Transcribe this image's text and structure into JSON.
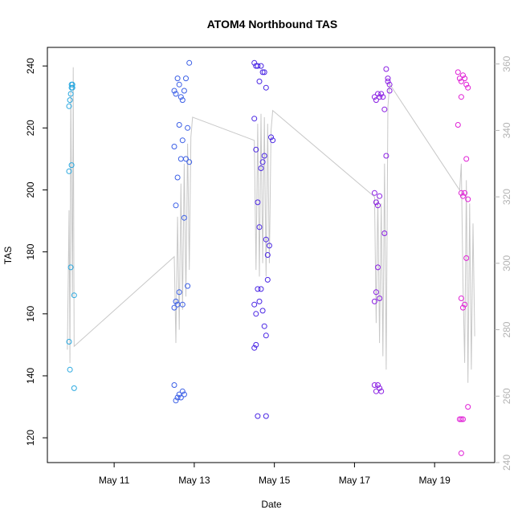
{
  "chart_data": {
    "type": "scatter",
    "title": "ATOM4 Northbound TAS",
    "xlabel": "Date",
    "ylabel": "TAS",
    "x_axis": {
      "type": "date",
      "range": [
        "2024-05-09T08:00",
        "2024-05-20T12:00"
      ],
      "ticks": [
        {
          "label": "May 11",
          "date": "2024-05-11"
        },
        {
          "label": "May 13",
          "date": "2024-05-13"
        },
        {
          "label": "May 15",
          "date": "2024-05-15"
        },
        {
          "label": "May 17",
          "date": "2024-05-17"
        },
        {
          "label": "May 19",
          "date": "2024-05-19"
        }
      ]
    },
    "y_left": {
      "range": [
        112,
        246
      ],
      "ticks": [
        120,
        140,
        160,
        180,
        200,
        220,
        240
      ]
    },
    "y_right": {
      "range": [
        240,
        365
      ],
      "ticks": [
        240,
        260,
        280,
        300,
        320,
        340,
        360
      ],
      "color": "#b3b3b3"
    },
    "grid": false,
    "legend": "none",
    "line_series": {
      "color": "#c8c8c8",
      "axis": "right",
      "points": [
        [
          "2024-05-09T20:00",
          274
        ],
        [
          "2024-05-09T21:00",
          316
        ],
        [
          "2024-05-09T21:30",
          270
        ],
        [
          "2024-05-09T22:00",
          352
        ],
        [
          "2024-05-09T23:00",
          290
        ],
        [
          "2024-05-09T23:30",
          359
        ],
        [
          "2024-05-10T00:00",
          275
        ],
        [
          "2024-05-12T12:00",
          302
        ],
        [
          "2024-05-12T13:00",
          276
        ],
        [
          "2024-05-12T14:00",
          314
        ],
        [
          "2024-05-12T15:00",
          280
        ],
        [
          "2024-05-12T16:00",
          324
        ],
        [
          "2024-05-12T17:00",
          286
        ],
        [
          "2024-05-12T18:00",
          330
        ],
        [
          "2024-05-12T19:00",
          290
        ],
        [
          "2024-05-12T20:00",
          336
        ],
        [
          "2024-05-12T21:00",
          298
        ],
        [
          "2024-05-12T22:00",
          338
        ],
        [
          "2024-05-12T23:00",
          344
        ],
        [
          "2024-05-14T12:00",
          337
        ],
        [
          "2024-05-14T13:00",
          298
        ],
        [
          "2024-05-14T14:00",
          342
        ],
        [
          "2024-05-14T15:00",
          296
        ],
        [
          "2024-05-14T16:00",
          345
        ],
        [
          "2024-05-14T17:00",
          300
        ],
        [
          "2024-05-14T18:00",
          344
        ],
        [
          "2024-05-14T19:00",
          296
        ],
        [
          "2024-05-14T20:00",
          342
        ],
        [
          "2024-05-14T21:00",
          300
        ],
        [
          "2024-05-14T22:00",
          340
        ],
        [
          "2024-05-14T23:00",
          346
        ],
        [
          "2024-05-17T12:00",
          320
        ],
        [
          "2024-05-17T13:00",
          282
        ],
        [
          "2024-05-17T14:00",
          320
        ],
        [
          "2024-05-17T15:00",
          276
        ],
        [
          "2024-05-17T16:00",
          318
        ],
        [
          "2024-05-17T17:00",
          272
        ],
        [
          "2024-05-17T18:00",
          330
        ],
        [
          "2024-05-17T19:00",
          268
        ],
        [
          "2024-05-17T20:00",
          347
        ],
        [
          "2024-05-17T21:00",
          354
        ],
        [
          "2024-05-19T15:00",
          322
        ],
        [
          "2024-05-19T16:00",
          330
        ],
        [
          "2024-05-19T17:00",
          294
        ],
        [
          "2024-05-19T18:00",
          270
        ],
        [
          "2024-05-19T19:00",
          325
        ],
        [
          "2024-05-19T20:00",
          264
        ],
        [
          "2024-05-19T21:00",
          318
        ],
        [
          "2024-05-19T22:00",
          268
        ],
        [
          "2024-05-19T23:00",
          312
        ],
        [
          "2024-05-20T00:00",
          278
        ]
      ]
    },
    "scatter_series": {
      "axis": "left",
      "colors": [
        "#29a8e0",
        "#3b5fe6",
        "#4a26e4",
        "#8a1fe3",
        "#e020d6"
      ],
      "groups": [
        {
          "color_index": 0,
          "points": [
            [
              "2024-05-09T21:00",
              151
            ],
            [
              "2024-05-09T21:30",
              142
            ],
            [
              "2024-05-09T22:00",
              175
            ],
            [
              "2024-05-09T21:00",
              206
            ],
            [
              "2024-05-09T22:30",
              208
            ],
            [
              "2024-05-09T21:00",
              227
            ],
            [
              "2024-05-09T21:30",
              229
            ],
            [
              "2024-05-09T22:00",
              231
            ],
            [
              "2024-05-09T22:30",
              233
            ],
            [
              "2024-05-09T23:00",
              233
            ],
            [
              "2024-05-09T22:30",
              234
            ],
            [
              "2024-05-09T23:00",
              234
            ],
            [
              "2024-05-10T00:00",
              166
            ],
            [
              "2024-05-10T00:00",
              136
            ]
          ]
        },
        {
          "color_index": 1,
          "points": [
            [
              "2024-05-12T12:00",
              214
            ],
            [
              "2024-05-12T13:00",
              195
            ],
            [
              "2024-05-12T14:00",
              204
            ],
            [
              "2024-05-12T15:00",
              221
            ],
            [
              "2024-05-12T16:00",
              210
            ],
            [
              "2024-05-12T17:00",
              216
            ],
            [
              "2024-05-12T18:00",
              191
            ],
            [
              "2024-05-12T19:00",
              210
            ],
            [
              "2024-05-12T20:00",
              220
            ],
            [
              "2024-05-12T21:00",
              209
            ],
            [
              "2024-05-12T12:00",
              232
            ],
            [
              "2024-05-12T13:00",
              231
            ],
            [
              "2024-05-12T14:00",
              236
            ],
            [
              "2024-05-12T15:00",
              234
            ],
            [
              "2024-05-12T16:00",
              230
            ],
            [
              "2024-05-12T17:00",
              229
            ],
            [
              "2024-05-12T18:00",
              232
            ],
            [
              "2024-05-12T19:00",
              236
            ],
            [
              "2024-05-12T21:00",
              241
            ],
            [
              "2024-05-12T12:00",
              162
            ],
            [
              "2024-05-12T13:00",
              164
            ],
            [
              "2024-05-12T14:00",
              163
            ],
            [
              "2024-05-12T15:00",
              167
            ],
            [
              "2024-05-12T17:00",
              163
            ],
            [
              "2024-05-12T20:00",
              169
            ],
            [
              "2024-05-12T12:00",
              137
            ],
            [
              "2024-05-12T13:00",
              132
            ],
            [
              "2024-05-12T14:00",
              133
            ],
            [
              "2024-05-12T15:00",
              134
            ],
            [
              "2024-05-12T16:00",
              133
            ],
            [
              "2024-05-12T17:00",
              135
            ],
            [
              "2024-05-12T18:00",
              134
            ]
          ]
        },
        {
          "color_index": 2,
          "points": [
            [
              "2024-05-14T12:00",
              223
            ],
            [
              "2024-05-14T13:00",
              213
            ],
            [
              "2024-05-14T14:00",
              196
            ],
            [
              "2024-05-14T15:00",
              188
            ],
            [
              "2024-05-14T16:00",
              207
            ],
            [
              "2024-05-14T17:00",
              209
            ],
            [
              "2024-05-14T18:00",
              211
            ],
            [
              "2024-05-14T19:00",
              184
            ],
            [
              "2024-05-14T20:00",
              179
            ],
            [
              "2024-05-14T21:00",
              182
            ],
            [
              "2024-05-14T22:00",
              217
            ],
            [
              "2024-05-14T23:00",
              216
            ],
            [
              "2024-05-14T12:00",
              241
            ],
            [
              "2024-05-14T13:00",
              240
            ],
            [
              "2024-05-14T14:00",
              240
            ],
            [
              "2024-05-14T15:00",
              235
            ],
            [
              "2024-05-14T16:00",
              240
            ],
            [
              "2024-05-14T17:00",
              238
            ],
            [
              "2024-05-14T18:00",
              238
            ],
            [
              "2024-05-14T19:00",
              233
            ],
            [
              "2024-05-14T12:00",
              163
            ],
            [
              "2024-05-14T13:00",
              160
            ],
            [
              "2024-05-14T14:00",
              168
            ],
            [
              "2024-05-14T15:00",
              164
            ],
            [
              "2024-05-14T16:00",
              168
            ],
            [
              "2024-05-14T17:00",
              161
            ],
            [
              "2024-05-14T18:00",
              156
            ],
            [
              "2024-05-14T19:00",
              153
            ],
            [
              "2024-05-14T20:00",
              171
            ],
            [
              "2024-05-14T12:00",
              149
            ],
            [
              "2024-05-14T13:00",
              150
            ],
            [
              "2024-05-14T14:00",
              127
            ],
            [
              "2024-05-14T19:00",
              127
            ]
          ]
        },
        {
          "color_index": 3,
          "points": [
            [
              "2024-05-17T12:00",
              230
            ],
            [
              "2024-05-17T13:00",
              229
            ],
            [
              "2024-05-17T14:00",
              231
            ],
            [
              "2024-05-17T15:00",
              230
            ],
            [
              "2024-05-17T16:00",
              231
            ],
            [
              "2024-05-17T17:00",
              230
            ],
            [
              "2024-05-17T18:00",
              226
            ],
            [
              "2024-05-17T19:00",
              239
            ],
            [
              "2024-05-17T20:00",
              236
            ],
            [
              "2024-05-17T21:00",
              234
            ],
            [
              "2024-05-17T20:00",
              235
            ],
            [
              "2024-05-17T21:00",
              232
            ],
            [
              "2024-05-17T12:00",
              199
            ],
            [
              "2024-05-17T13:00",
              196
            ],
            [
              "2024-05-17T14:00",
              195
            ],
            [
              "2024-05-17T15:00",
              198
            ],
            [
              "2024-05-17T18:00",
              186
            ],
            [
              "2024-05-17T19:00",
              211
            ],
            [
              "2024-05-17T12:00",
              164
            ],
            [
              "2024-05-17T13:00",
              167
            ],
            [
              "2024-05-17T14:00",
              175
            ],
            [
              "2024-05-17T15:00",
              165
            ],
            [
              "2024-05-17T12:00",
              137
            ],
            [
              "2024-05-17T13:00",
              135
            ],
            [
              "2024-05-17T14:00",
              137
            ],
            [
              "2024-05-17T15:00",
              136
            ],
            [
              "2024-05-17T16:00",
              135
            ]
          ]
        },
        {
          "color_index": 4,
          "points": [
            [
              "2024-05-19T14:00",
              238
            ],
            [
              "2024-05-19T15:00",
              236
            ],
            [
              "2024-05-19T16:00",
              235
            ],
            [
              "2024-05-19T17:00",
              237
            ],
            [
              "2024-05-19T18:00",
              236
            ],
            [
              "2024-05-19T19:00",
              234
            ],
            [
              "2024-05-19T20:00",
              233
            ],
            [
              "2024-05-19T16:00",
              230
            ],
            [
              "2024-05-19T14:00",
              221
            ],
            [
              "2024-05-19T19:00",
              210
            ],
            [
              "2024-05-19T16:00",
              199
            ],
            [
              "2024-05-19T17:00",
              198
            ],
            [
              "2024-05-19T18:00",
              199
            ],
            [
              "2024-05-19T20:00",
              197
            ],
            [
              "2024-05-19T19:00",
              178
            ],
            [
              "2024-05-19T16:00",
              165
            ],
            [
              "2024-05-19T17:00",
              162
            ],
            [
              "2024-05-19T18:00",
              163
            ],
            [
              "2024-05-19T20:00",
              130
            ],
            [
              "2024-05-19T15:00",
              126
            ],
            [
              "2024-05-19T16:00",
              126
            ],
            [
              "2024-05-19T17:00",
              126
            ],
            [
              "2024-05-19T16:00",
              115
            ]
          ]
        }
      ]
    }
  }
}
